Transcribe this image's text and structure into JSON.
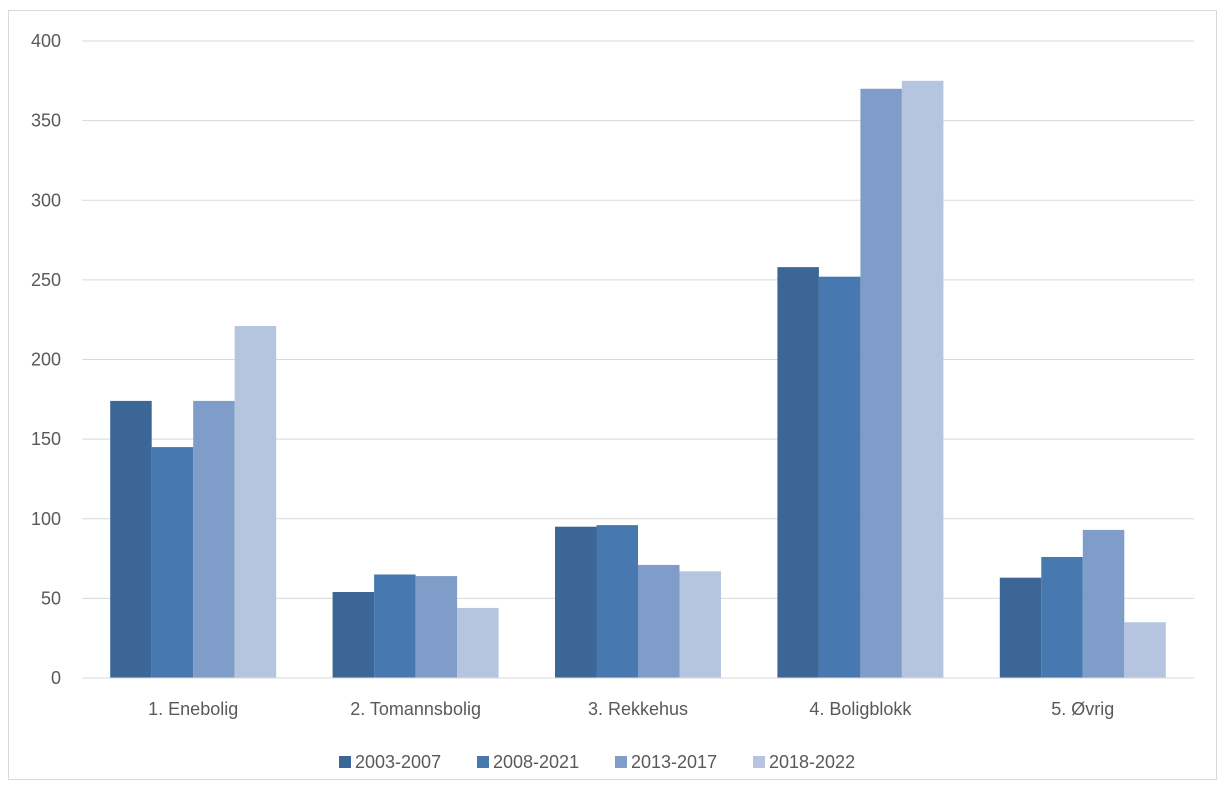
{
  "chart_data": {
    "type": "bar",
    "title": "",
    "xlabel": "",
    "ylabel": "",
    "categories": [
      "1. Enebolig",
      "2. Tomannsbolig",
      "3. Rekkehus",
      "4. Boligblokk",
      "5. Øvrig"
    ],
    "series": [
      {
        "name": "2003-2007",
        "color": "#3b6696",
        "values": [
          174,
          54,
          95,
          258,
          63
        ]
      },
      {
        "name": "2008-2021",
        "color": "#4878b0",
        "values": [
          145,
          65,
          96,
          252,
          76
        ]
      },
      {
        "name": "2013-2017",
        "color": "#7f9dc8",
        "values": [
          174,
          64,
          71,
          370,
          93
        ]
      },
      {
        "name": "2018-2022",
        "color": "#b5c4df",
        "values": [
          221,
          44,
          67,
          375,
          35
        ]
      }
    ],
    "ylim": [
      0,
      400
    ],
    "yticks": [
      0,
      50,
      100,
      150,
      200,
      250,
      300,
      350,
      400
    ],
    "grid": true,
    "legend_position": "bottom"
  }
}
